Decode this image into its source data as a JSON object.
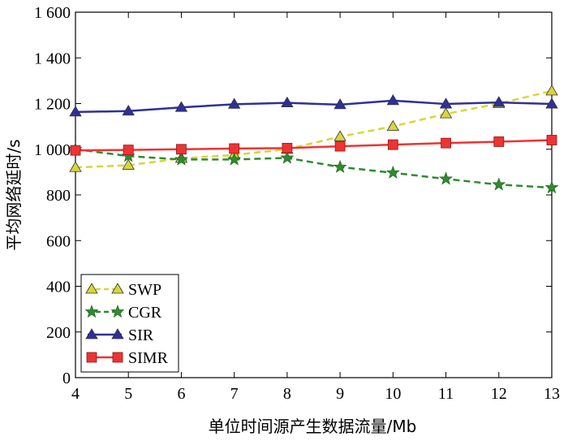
{
  "chart_data": {
    "type": "line",
    "title": "",
    "xlabel": "单位时间源产生数据流量/Mb",
    "ylabel": "平均网络延时/s",
    "x": [
      4,
      5,
      6,
      7,
      8,
      9,
      10,
      11,
      12,
      13
    ],
    "x_tick_labels": [
      "4",
      "5",
      "6",
      "7",
      "8",
      "9",
      "10",
      "11",
      "12",
      "13"
    ],
    "xlim": [
      4,
      13
    ],
    "ylim": [
      0,
      1600
    ],
    "y_ticks": [
      0,
      200,
      400,
      600,
      800,
      1000,
      1200,
      1400,
      1600
    ],
    "y_tick_labels": [
      "0",
      "200",
      "400",
      "600",
      "800",
      "1 000",
      "1 200",
      "1 400",
      "1 600"
    ],
    "grid": false,
    "legend_position": "bottom-left",
    "series": [
      {
        "name": "SWP",
        "color": "#d6d63a",
        "marker": "triangle",
        "line_style": "dashed",
        "values": [
          920,
          930,
          960,
          975,
          1000,
          1055,
          1100,
          1155,
          1200,
          1255
        ]
      },
      {
        "name": "CGR",
        "color": "#2e8b2e",
        "marker": "star",
        "line_style": "dashed",
        "values": [
          1000,
          970,
          955,
          955,
          962,
          922,
          897,
          870,
          845,
          832
        ]
      },
      {
        "name": "SIR",
        "color": "#2f2f9a",
        "marker": "triangle",
        "line_style": "solid",
        "values": [
          1163,
          1167,
          1183,
          1197,
          1203,
          1195,
          1213,
          1198,
          1205,
          1198
        ]
      },
      {
        "name": "SIMR",
        "color": "#ee3333",
        "marker": "square",
        "line_style": "solid",
        "values": [
          995,
          997,
          1000,
          1003,
          1005,
          1013,
          1020,
          1027,
          1033,
          1040
        ]
      }
    ]
  }
}
